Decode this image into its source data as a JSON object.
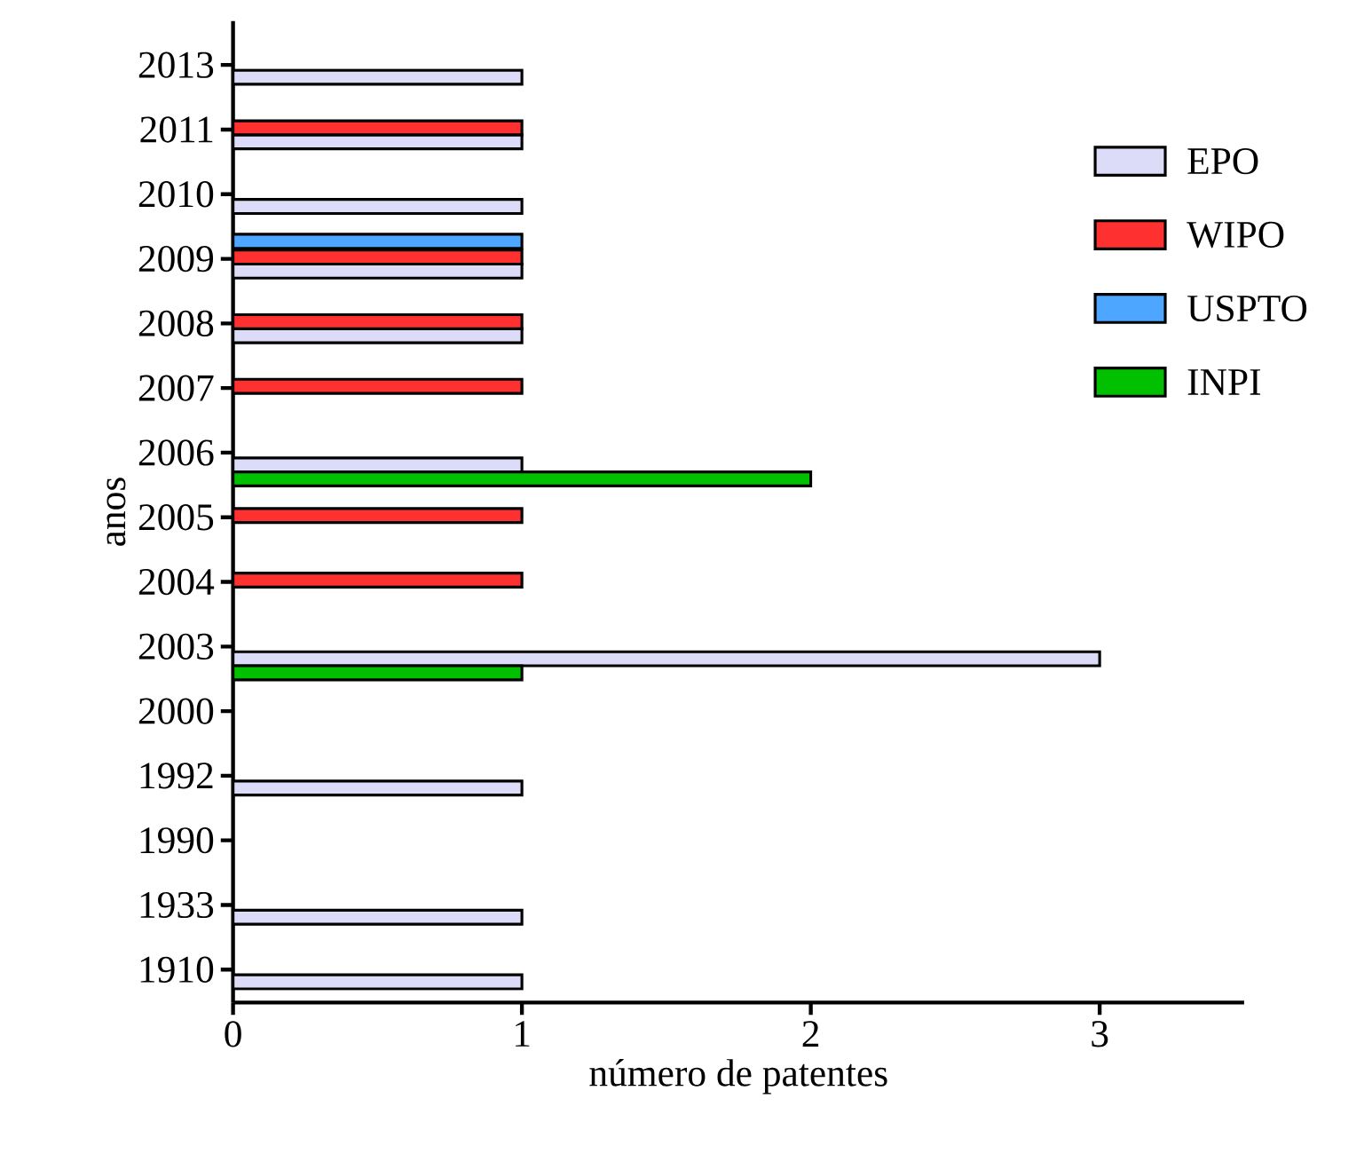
{
  "chart_data": {
    "type": "bar",
    "orientation": "horizontal",
    "xlabel": "número de patentes",
    "ylabel": "anos",
    "categories": [
      "2013",
      "2011",
      "2010",
      "2009",
      "2008",
      "2007",
      "2006",
      "2005",
      "2004",
      "2003",
      "2000",
      "1992",
      "1990",
      "1933",
      "1910"
    ],
    "series": [
      {
        "name": "EPO",
        "color": "#dcdcf8",
        "values": [
          1,
          1,
          1,
          1,
          1,
          null,
          1,
          null,
          null,
          3,
          null,
          1,
          null,
          1,
          1
        ]
      },
      {
        "name": "WIPO",
        "color": "#ff3030",
        "values": [
          null,
          1,
          null,
          1,
          1,
          1,
          null,
          1,
          1,
          null,
          null,
          null,
          null,
          null,
          null
        ]
      },
      {
        "name": "USPTO",
        "color": "#4da6ff",
        "values": [
          null,
          null,
          null,
          1,
          null,
          null,
          null,
          null,
          null,
          null,
          null,
          null,
          null,
          null,
          null
        ]
      },
      {
        "name": "INPI",
        "color": "#00c000",
        "values": [
          null,
          null,
          null,
          null,
          null,
          null,
          2,
          null,
          null,
          1,
          null,
          null,
          null,
          null,
          null
        ]
      }
    ],
    "xlim": [
      0,
      3.5
    ],
    "xticks": [
      0,
      1,
      2,
      3
    ],
    "grid": false,
    "legend": "top right"
  }
}
